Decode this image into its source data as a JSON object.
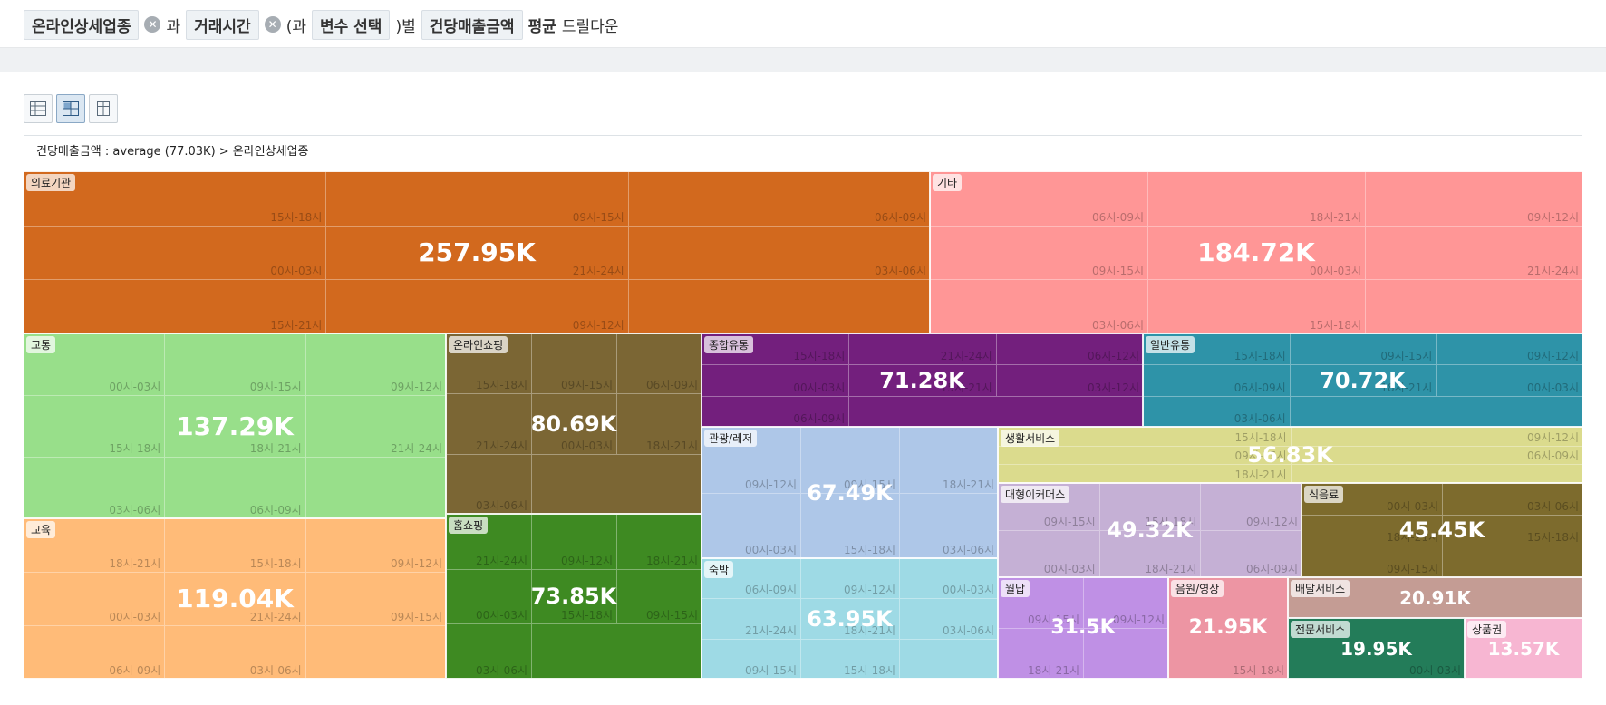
{
  "drill_bar": {
    "chip_industry": "온라인상세업종",
    "word_and": "과",
    "chip_time": "거래시간",
    "word_open": "(과",
    "chip_var": "변수 선택",
    "word_by": ")별",
    "chip_metric": "건당매출금액",
    "word_avg": "평균",
    "word_drill": "드릴다운"
  },
  "breadcrumb": "건당매출금액 : average (77.03K) > 온라인상세업종",
  "colors": {
    "의료기관": "#d2691e",
    "기타": "#ff9696",
    "교통": "#98df8a",
    "교육": "#ffbb78",
    "온라인쇼핑": "#7b6634",
    "홈쇼핑": "#3e8a22",
    "종합유통": "#731f7d",
    "일반유통": "#2e93a8",
    "관광/레저": "#aec7e8",
    "숙박": "#9edae5",
    "생활서비스": "#dbdb8d",
    "대형이커머스": "#c5b0d5",
    "식음료": "#7d6b2d",
    "월납": "#bf90e5",
    "음원/영상": "#ed95a3",
    "배달서비스": "#c49c94",
    "전문서비스": "#237c59",
    "상품권": "#f7b6d2"
  },
  "cells": [
    {
      "name": "의료기관",
      "value": "257.95K",
      "subs": [
        "15시-18시",
        "09시-15시",
        "06시-09시",
        "00시-03시",
        "21시-24시",
        "03시-06시",
        "15시-21시",
        "09시-12시"
      ]
    },
    {
      "name": "기타",
      "value": "184.72K",
      "subs": [
        "06시-09시",
        "18시-21시",
        "09시-12시",
        "09시-15시",
        "00시-03시",
        "21시-24시",
        "03시-06시",
        "15시-18시"
      ]
    },
    {
      "name": "교통",
      "value": "137.29K",
      "subs": [
        "00시-03시",
        "09시-15시",
        "09시-12시",
        "15시-18시",
        "18시-21시",
        "21시-24시",
        "03시-06시",
        "06시-09시"
      ]
    },
    {
      "name": "교육",
      "value": "119.04K",
      "subs": [
        "18시-21시",
        "15시-18시",
        "09시-12시",
        "00시-03시",
        "21시-24시",
        "09시-15시",
        "06시-09시",
        "03시-06시"
      ]
    },
    {
      "name": "온라인쇼핑",
      "value": "80.69K",
      "subs": [
        "15시-18시",
        "09시-15시",
        "06시-09시",
        "21시-24시",
        "00시-03시",
        "18시-21시",
        "03시-06시"
      ]
    },
    {
      "name": "홈쇼핑",
      "value": "73.85K",
      "subs": [
        "21시-24시",
        "09시-12시",
        "18시-21시",
        "00시-03시",
        "15시-18시",
        "09시-15시",
        "03시-06시"
      ]
    },
    {
      "name": "종합유통",
      "value": "71.28K",
      "subs": [
        "15시-18시",
        "21시-24시",
        "06시-12시",
        "00시-03시",
        "15시-21시",
        "03시-12시",
        "06시-09시"
      ]
    },
    {
      "name": "일반유통",
      "value": "70.72K",
      "subs": [
        "15시-18시",
        "09시-15시",
        "09시-12시",
        "06시-09시",
        "18시-21시",
        "00시-03시",
        "03시-06시"
      ]
    },
    {
      "name": "관광/레저",
      "value": "67.49K",
      "subs": [
        "09시-12시",
        "09시-15시",
        "18시-21시",
        "00시-03시",
        "15시-18시",
        "03시-06시"
      ]
    },
    {
      "name": "숙박",
      "value": "63.95K",
      "subs": [
        "06시-09시",
        "09시-12시",
        "00시-03시",
        "21시-24시",
        "18시-21시",
        "03시-06시",
        "09시-15시",
        "15시-18시"
      ]
    },
    {
      "name": "생활서비스",
      "value": "56.83K",
      "subs": [
        "15시-18시",
        "09시-12시",
        "09시-15시",
        "06시-09시",
        "18시-21시"
      ]
    },
    {
      "name": "대형이커머스",
      "value": "49.32K",
      "subs": [
        "09시-15시",
        "15시-18시",
        "09시-12시",
        "00시-03시",
        "18시-21시",
        "06시-09시"
      ]
    },
    {
      "name": "식음료",
      "value": "45.45K",
      "subs": [
        "00시-03시",
        "03시-06시",
        "18시-21시",
        "15시-18시",
        "09시-15시"
      ]
    },
    {
      "name": "월납",
      "value": "31.5K",
      "subs": [
        "09시-15시",
        "09시-12시",
        "18시-21시"
      ]
    },
    {
      "name": "음원/영상",
      "value": "21.95K",
      "subs": [
        "15시-18시"
      ]
    },
    {
      "name": "배달서비스",
      "value": "20.91K",
      "subs": []
    },
    {
      "name": "전문서비스",
      "value": "19.95K",
      "subs": [
        "00시-03시"
      ]
    },
    {
      "name": "상품권",
      "value": "13.57K",
      "subs": []
    }
  ]
}
